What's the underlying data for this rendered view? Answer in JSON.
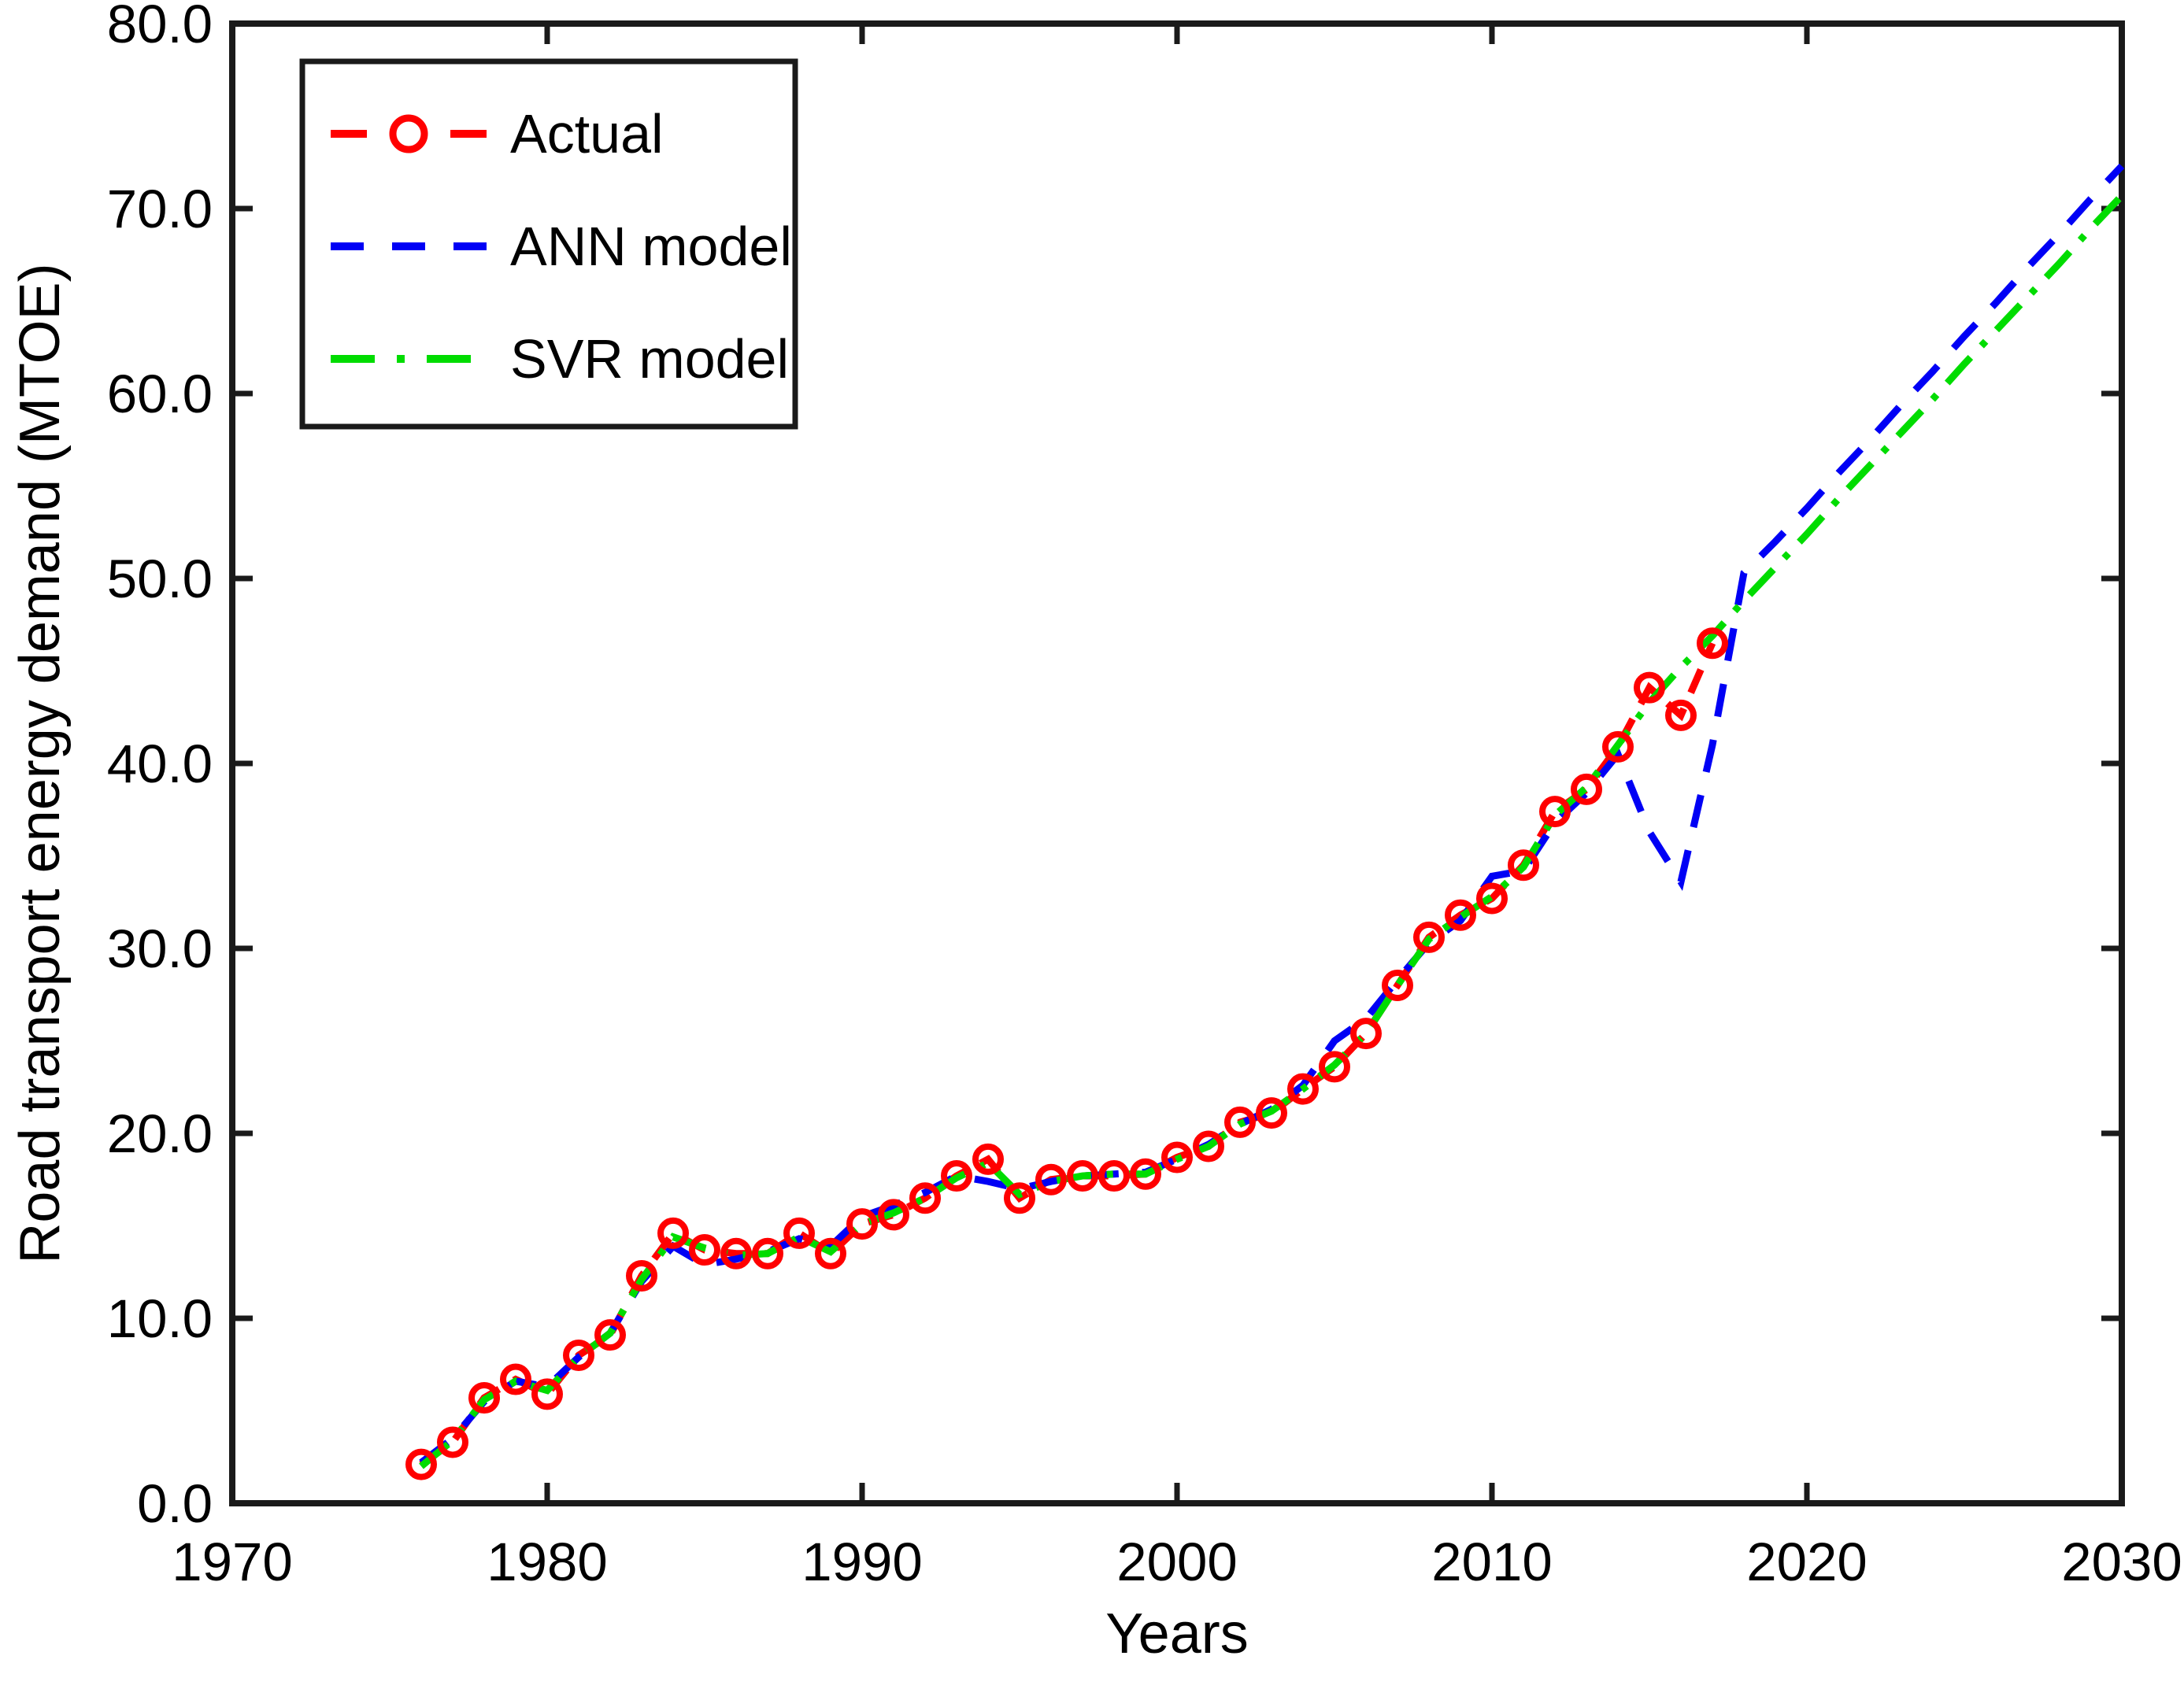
{
  "figure": {
    "background": "#ffffff",
    "axis_color": "#1a1a1a",
    "text_color": "#000000"
  },
  "chart_data": {
    "type": "line",
    "title": "",
    "xlabel": "Years",
    "ylabel": "Road transport energy demand (MTOE)",
    "xlim": [
      1970,
      2030
    ],
    "ylim": [
      0,
      80
    ],
    "grid": false,
    "legend_position": "top-left",
    "x_ticks": [
      1970,
      1980,
      1990,
      2000,
      2010,
      2020,
      2030
    ],
    "y_ticks": [
      "0.0",
      "10.0",
      "20.0",
      "30.0",
      "40.0",
      "50.0",
      "60.0",
      "70.0",
      "80.0"
    ],
    "series": [
      {
        "name": "Actual",
        "color": "#ff0000",
        "style": "dashed",
        "marker": "circle",
        "x": [
          1976,
          1977,
          1978,
          1979,
          1980,
          1981,
          1982,
          1983,
          1984,
          1985,
          1986,
          1987,
          1988,
          1989,
          1990,
          1991,
          1992,
          1993,
          1994,
          1995,
          1996,
          1997,
          1998,
          1999,
          2000,
          2001,
          2002,
          2003,
          2004,
          2005,
          2006,
          2007,
          2008,
          2009,
          2010,
          2011,
          2012,
          2013,
          2014,
          2015,
          2016,
          2017
        ],
        "values": [
          2.1,
          3.3,
          5.7,
          6.7,
          5.9,
          8.0,
          9.1,
          12.3,
          14.6,
          13.7,
          13.5,
          13.5,
          14.6,
          13.5,
          15.1,
          15.6,
          16.5,
          17.7,
          18.6,
          16.5,
          17.5,
          17.7,
          17.7,
          17.8,
          18.7,
          19.3,
          20.6,
          21.1,
          22.4,
          23.6,
          25.4,
          28.0,
          30.6,
          31.8,
          32.7,
          34.5,
          37.4,
          38.6,
          40.9,
          44.1,
          42.6,
          46.5
        ]
      },
      {
        "name": "ANN model",
        "color": "#0000f5",
        "style": "dashed",
        "marker": "none",
        "x": [
          1976,
          1977,
          1978,
          1979,
          1980,
          1981,
          1982,
          1983,
          1984,
          1985,
          1986,
          1987,
          1988,
          1989,
          1990,
          1991,
          1992,
          1993,
          1994,
          1995,
          1996,
          1997,
          1998,
          1999,
          2000,
          2001,
          2002,
          2003,
          2004,
          2005,
          2006,
          2007,
          2008,
          2009,
          2010,
          2011,
          2012,
          2013,
          2014,
          2015,
          2016,
          2017,
          2018,
          2019,
          2020,
          2021,
          2022,
          2023,
          2024,
          2025,
          2026,
          2027,
          2028,
          2029,
          2030
        ],
        "values": [
          2.2,
          3.5,
          5.5,
          6.6,
          6.3,
          7.9,
          9.2,
          12.0,
          13.9,
          12.9,
          13.2,
          13.6,
          14.3,
          13.9,
          15.5,
          16.1,
          16.8,
          17.7,
          17.4,
          17.0,
          17.4,
          17.7,
          17.8,
          17.9,
          18.6,
          19.4,
          20.5,
          21.3,
          22.6,
          25.0,
          26.2,
          28.3,
          30.3,
          31.5,
          33.9,
          34.2,
          36.8,
          38.4,
          40.5,
          36.3,
          33.6,
          41.0,
          50.3,
          52.0,
          53.8,
          55.7,
          57.5,
          59.4,
          61.2,
          63.1,
          64.9,
          66.8,
          68.6,
          70.5,
          72.3
        ]
      },
      {
        "name": "SVR model",
        "color": "#00dc00",
        "style": "dashdot",
        "marker": "none",
        "x": [
          1976,
          1977,
          1978,
          1979,
          1980,
          1981,
          1982,
          1983,
          1984,
          1985,
          1986,
          1987,
          1988,
          1989,
          1990,
          1991,
          1992,
          1993,
          1994,
          1995,
          1996,
          1997,
          1998,
          1999,
          2000,
          2001,
          2002,
          2003,
          2004,
          2005,
          2006,
          2007,
          2008,
          2009,
          2010,
          2011,
          2012,
          2013,
          2014,
          2015,
          2016,
          2017,
          2018,
          2019,
          2020,
          2021,
          2022,
          2023,
          2024,
          2025,
          2026,
          2027,
          2028,
          2029,
          2030
        ],
        "values": [
          2.0,
          3.4,
          5.6,
          6.6,
          6.1,
          7.9,
          9.2,
          12.1,
          14.4,
          13.8,
          13.4,
          13.5,
          14.4,
          13.6,
          15.1,
          15.7,
          16.5,
          17.6,
          18.4,
          16.7,
          17.4,
          17.7,
          17.8,
          17.8,
          18.6,
          19.3,
          20.5,
          21.2,
          22.4,
          23.7,
          25.4,
          28.0,
          30.5,
          31.7,
          32.8,
          34.4,
          37.2,
          38.7,
          41.0,
          43.3,
          45.2,
          46.9,
          48.8,
          50.6,
          52.4,
          54.3,
          56.1,
          57.9,
          59.7,
          61.6,
          63.4,
          65.2,
          67.0,
          68.9,
          70.7
        ]
      }
    ]
  },
  "legend": {
    "entries": [
      "Actual",
      "ANN model",
      "SVR model"
    ]
  }
}
